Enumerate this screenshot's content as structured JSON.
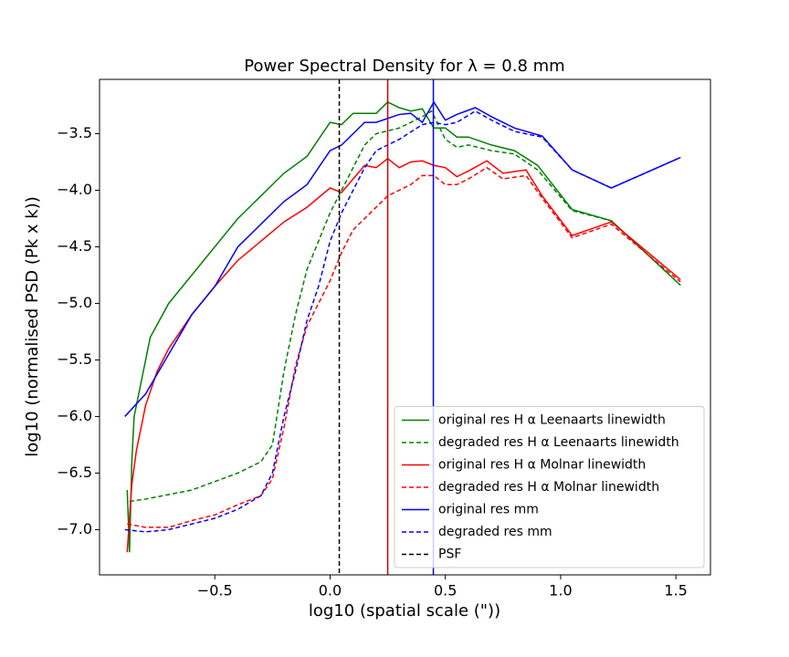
{
  "chart_data": {
    "type": "line",
    "title": "Power Spectral Density for λ = 0.8 mm",
    "xlabel": "log10 (spatial scale (\"))",
    "ylabel": "log10 (normalised PSD (Pk x k))",
    "xlim": [
      -1.0,
      1.65
    ],
    "ylim": [
      -7.4,
      -3.02
    ],
    "xticks": [
      {
        "value": -0.5,
        "label": "−0.5"
      },
      {
        "value": 0,
        "label": "0.0"
      },
      0.5,
      {
        "value": 1,
        "label": "1.0"
      },
      1.5
    ],
    "yticks": [
      {
        "value": -3.5,
        "label": "−3.5"
      },
      {
        "value": -4,
        "label": "−4.0"
      },
      {
        "value": -4.5,
        "label": "−4.5"
      },
      {
        "value": -5,
        "label": "−5.0"
      },
      {
        "value": -5.5,
        "label": "−5.5"
      },
      {
        "value": -6,
        "label": "−6.0"
      },
      {
        "value": -6.5,
        "label": "−6.5"
      },
      {
        "value": -7,
        "label": "−7.0"
      }
    ],
    "legend": "lower right",
    "series": [
      {
        "name": "original res H α Leenaarts linewidth",
        "color": "green",
        "dashed": false,
        "x": [
          -0.88,
          -0.87,
          -0.86,
          -0.85,
          -0.82,
          -0.78,
          -0.7,
          -0.6,
          -0.5,
          -0.4,
          -0.3,
          -0.2,
          -0.1,
          0.0,
          0.05,
          0.1,
          0.2,
          0.25,
          0.3,
          0.35,
          0.4,
          0.45,
          0.5,
          0.55,
          0.6,
          0.7,
          0.8,
          0.9,
          1.05,
          1.22,
          1.52
        ],
        "values": [
          -6.65,
          -7.2,
          -6.4,
          -6.0,
          -5.7,
          -5.3,
          -5.0,
          -4.75,
          -4.5,
          -4.25,
          -4.05,
          -3.85,
          -3.7,
          -3.4,
          -3.42,
          -3.32,
          -3.32,
          -3.22,
          -3.27,
          -3.3,
          -3.28,
          -3.45,
          -3.45,
          -3.53,
          -3.53,
          -3.6,
          -3.65,
          -3.78,
          -4.17,
          -4.27,
          -4.84
        ]
      },
      {
        "name": "degraded res H α Leenaarts linewidth",
        "color": "green",
        "dashed": true,
        "x": [
          -0.87,
          -0.8,
          -0.6,
          -0.4,
          -0.3,
          -0.25,
          -0.2,
          -0.15,
          -0.1,
          -0.05,
          0.0,
          0.05,
          0.1,
          0.15,
          0.2,
          0.3,
          0.4,
          0.44,
          0.5,
          0.55,
          0.6,
          0.7,
          0.8,
          0.9,
          1.05,
          1.22,
          1.52
        ],
        "values": [
          -6.75,
          -6.73,
          -6.65,
          -6.5,
          -6.4,
          -6.25,
          -5.6,
          -5.1,
          -4.7,
          -4.45,
          -4.2,
          -4.0,
          -3.8,
          -3.6,
          -3.5,
          -3.45,
          -3.35,
          -3.3,
          -3.55,
          -3.62,
          -3.6,
          -3.65,
          -3.68,
          -3.82,
          -4.18,
          -4.27,
          -4.84
        ]
      },
      {
        "name": "original res H α Molnar linewidth",
        "color": "red",
        "dashed": false,
        "x": [
          -0.88,
          -0.86,
          -0.84,
          -0.8,
          -0.75,
          -0.7,
          -0.6,
          -0.5,
          -0.4,
          -0.3,
          -0.2,
          -0.1,
          0.0,
          0.05,
          0.1,
          0.15,
          0.2,
          0.25,
          0.3,
          0.35,
          0.4,
          0.45,
          0.5,
          0.55,
          0.6,
          0.68,
          0.75,
          0.85,
          0.92,
          1.05,
          1.22,
          1.52
        ],
        "values": [
          -7.2,
          -6.6,
          -6.3,
          -5.9,
          -5.6,
          -5.4,
          -5.1,
          -4.85,
          -4.62,
          -4.45,
          -4.28,
          -4.15,
          -3.98,
          -4.02,
          -3.9,
          -3.78,
          -3.8,
          -3.72,
          -3.8,
          -3.75,
          -3.74,
          -3.78,
          -3.8,
          -3.88,
          -3.83,
          -3.74,
          -3.85,
          -3.82,
          -4.05,
          -4.4,
          -4.28,
          -4.79
        ]
      },
      {
        "name": "degraded res H α Molnar linewidth",
        "color": "red",
        "dashed": true,
        "x": [
          -0.88,
          -0.8,
          -0.7,
          -0.6,
          -0.5,
          -0.4,
          -0.3,
          -0.25,
          -0.2,
          -0.15,
          -0.1,
          -0.05,
          0.0,
          0.05,
          0.1,
          0.15,
          0.2,
          0.25,
          0.3,
          0.35,
          0.4,
          0.45,
          0.5,
          0.55,
          0.6,
          0.68,
          0.75,
          0.85,
          0.92,
          1.05,
          1.22,
          1.52
        ],
        "values": [
          -6.95,
          -6.98,
          -6.98,
          -6.92,
          -6.87,
          -6.78,
          -6.7,
          -6.55,
          -6.1,
          -5.55,
          -5.2,
          -5.0,
          -4.8,
          -4.55,
          -4.35,
          -4.25,
          -4.15,
          -4.05,
          -4.0,
          -3.95,
          -3.87,
          -3.87,
          -3.95,
          -3.95,
          -3.9,
          -3.8,
          -3.9,
          -3.87,
          -4.07,
          -4.42,
          -4.3,
          -4.81
        ]
      },
      {
        "name": "original res mm",
        "color": "blue",
        "dashed": false,
        "x": [
          -0.89,
          -0.8,
          -0.7,
          -0.6,
          -0.5,
          -0.4,
          -0.3,
          -0.2,
          -0.1,
          0.0,
          0.05,
          0.1,
          0.15,
          0.2,
          0.3,
          0.35,
          0.4,
          0.45,
          0.5,
          0.55,
          0.63,
          0.7,
          0.8,
          0.92,
          1.05,
          1.22,
          1.52
        ],
        "values": [
          -6.0,
          -5.8,
          -5.45,
          -5.1,
          -4.85,
          -4.5,
          -4.3,
          -4.1,
          -3.95,
          -3.65,
          -3.6,
          -3.5,
          -3.4,
          -3.4,
          -3.33,
          -3.32,
          -3.4,
          -3.22,
          -3.38,
          -3.33,
          -3.27,
          -3.35,
          -3.45,
          -3.52,
          -3.82,
          -3.98,
          -3.71
        ]
      },
      {
        "name": "degraded res mm",
        "color": "blue",
        "dashed": true,
        "x": [
          -0.89,
          -0.8,
          -0.7,
          -0.6,
          -0.5,
          -0.4,
          -0.3,
          -0.25,
          -0.2,
          -0.15,
          -0.1,
          -0.05,
          0.0,
          0.05,
          0.1,
          0.15,
          0.2,
          0.3,
          0.4,
          0.45,
          0.5,
          0.55,
          0.63,
          0.7,
          0.8,
          0.92,
          1.05,
          1.22,
          1.52
        ],
        "values": [
          -7.0,
          -7.02,
          -7.0,
          -6.95,
          -6.9,
          -6.82,
          -6.7,
          -6.5,
          -6.0,
          -5.6,
          -5.15,
          -4.85,
          -4.45,
          -4.2,
          -4.0,
          -3.8,
          -3.65,
          -3.55,
          -3.42,
          -3.4,
          -3.42,
          -3.4,
          -3.3,
          -3.38,
          -3.48,
          -3.53,
          -3.82,
          -3.98,
          -3.71
        ]
      }
    ],
    "vlines": [
      {
        "name": "PSF",
        "x": 0.04,
        "color": "black",
        "dashed": true
      },
      {
        "x": 0.25,
        "color": "#cc0000",
        "dashed": false
      },
      {
        "x": 0.448,
        "color": "blue",
        "dashed": false
      }
    ]
  }
}
